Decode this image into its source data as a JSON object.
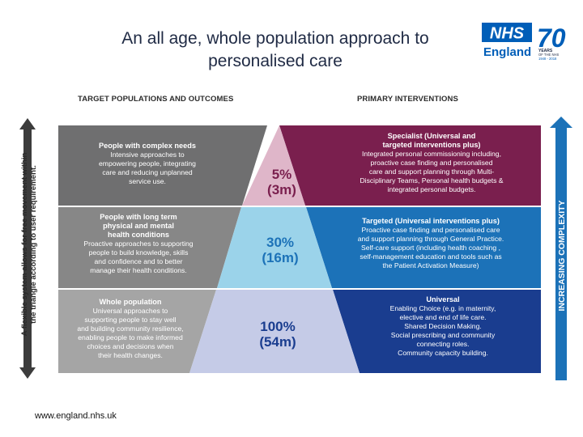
{
  "title_line1": "An all age, whole population approach to",
  "title_line2": "personalised care",
  "logo": {
    "nhs": "NHS",
    "england": "England",
    "seventy": "70",
    "years": "YEARS",
    "of_the_nhs": "OF THE NHS",
    "dates": "1948 - 2018"
  },
  "headers": {
    "left": "TARGET POPULATIONS AND OUTCOMES",
    "right": "PRIMARY INTERVENTIONS"
  },
  "left_arrow_line1": "A flexible system allows for free movement within",
  "left_arrow_line2": "the triangle according to user requirement.",
  "right_arrow": "INCREASING COMPLEXITY",
  "tiers": [
    {
      "pop_title": "People with complex needs",
      "pop_desc": [
        "Intensive approaches to",
        "empowering people, integrating",
        "care and reducing unplanned",
        "service use."
      ],
      "pct": "5%",
      "count": "(3m)",
      "int_title": [
        "Specialist  (Universal and",
        "targeted interventions plus)"
      ],
      "int_desc": [
        "Integrated personal commissioning including,",
        "proactive case finding and personalised",
        "care and support planning through Multi-",
        "Disciplinary Teams, Personal health budgets &",
        "integrated personal budgets."
      ],
      "color": "#7a1f4e"
    },
    {
      "pop_title": [
        "People with long term",
        "physical and mental",
        "health conditions"
      ],
      "pop_desc": [
        "Proactive approaches to supporting",
        "people to build knowledge, skills",
        "and confidence and to better",
        "manage their health conditions."
      ],
      "pct": "30%",
      "count": "(16m)",
      "int_title": [
        "Targeted (Universal interventions plus)"
      ],
      "int_desc": [
        "Proactive case finding and personalised care",
        "and support planning through General Practice.",
        "Self-care support (including health coaching ,",
        "self-management education and tools such as",
        "the Patient Activation Measure)"
      ],
      "color": "#1c72b8"
    },
    {
      "pop_title": "Whole population",
      "pop_desc": [
        "Universal approaches to",
        "supporting people to stay well",
        "and building community resilience,",
        "enabling people to make informed",
        "choices and decisions when",
        "their health changes."
      ],
      "pct": "100%",
      "count": "(54m)",
      "int_title": [
        "Universal"
      ],
      "int_desc": [
        "Enabling Choice (e.g. in maternity,",
        "elective and end of life care.",
        "Shared Decision Making.",
        "Social prescribing and community",
        "connecting roles.",
        "Community capacity building."
      ],
      "color": "#1a3d8f"
    }
  ],
  "footer": "www.england.nhs.uk"
}
